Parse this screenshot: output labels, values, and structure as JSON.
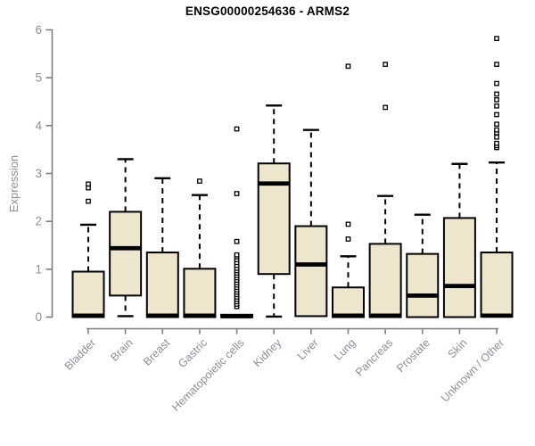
{
  "title": "ENSG00000254636 - ARMS2",
  "colors": {
    "box_fill": "#ede6cc",
    "box_stroke": "#000000",
    "axis_line": "#7e7e7e",
    "axis_text": "#8a8f98",
    "background": "#ffffff",
    "title_text": "#000000"
  },
  "chart_data": {
    "type": "boxplot",
    "title": "ENSG00000254636 - ARMS2",
    "xlabel": "",
    "ylabel": "Expression",
    "ylim": [
      0,
      6
    ],
    "y_ticks": [
      "0",
      "1",
      "2",
      "3",
      "4",
      "5",
      "6"
    ],
    "grid": false,
    "legend": "none",
    "categories": [
      "Bladder",
      "Brain",
      "Breast",
      "Gastric",
      "Hematopoietic cells",
      "Kidney",
      "Liver",
      "Lung",
      "Pancreas",
      "Prostate",
      "Skin",
      "Unknown / Other"
    ],
    "series": [
      {
        "name": "Bladder",
        "whislo": 0,
        "q1": 0,
        "med": 0.03,
        "q3": 0.95,
        "whishi": 1.93,
        "outliers": [
          2.42,
          2.7,
          2.78
        ]
      },
      {
        "name": "Brain",
        "whislo": 0.02,
        "q1": 0.45,
        "med": 1.44,
        "q3": 2.2,
        "whishi": 3.3,
        "outliers": []
      },
      {
        "name": "Breast",
        "whislo": 0,
        "q1": 0,
        "med": 0.03,
        "q3": 1.35,
        "whishi": 2.9,
        "outliers": []
      },
      {
        "name": "Gastric",
        "whislo": 0,
        "q1": 0,
        "med": 0.03,
        "q3": 1.01,
        "whishi": 2.55,
        "outliers": [
          2.84
        ]
      },
      {
        "name": "Hematopoietic cells",
        "whislo": 0,
        "q1": 0,
        "med": 0.02,
        "q3": 0.05,
        "whishi": 0.06,
        "outliers": [
          0.22,
          0.27,
          0.32,
          0.37,
          0.42,
          0.47,
          0.52,
          0.57,
          0.62,
          0.67,
          0.72,
          0.77,
          0.82,
          0.87,
          0.92,
          0.97,
          1.02,
          1.08,
          1.14,
          1.2,
          1.26,
          1.3,
          1.58,
          2.58,
          3.93
        ]
      },
      {
        "name": "Kidney",
        "whislo": 0.01,
        "q1": 0.9,
        "med": 2.79,
        "q3": 3.21,
        "whishi": 4.42,
        "outliers": []
      },
      {
        "name": "Liver",
        "whislo": 0.02,
        "q1": 0.02,
        "med": 1.1,
        "q3": 1.9,
        "whishi": 3.91,
        "outliers": []
      },
      {
        "name": "Lung",
        "whislo": 0,
        "q1": 0,
        "med": 0.03,
        "q3": 0.62,
        "whishi": 1.27,
        "outliers": [
          1.63,
          1.94,
          5.24
        ]
      },
      {
        "name": "Pancreas",
        "whislo": 0,
        "q1": 0,
        "med": 0.03,
        "q3": 1.53,
        "whishi": 2.53,
        "outliers": [
          4.38,
          5.28
        ]
      },
      {
        "name": "Prostate",
        "whislo": 0,
        "q1": 0,
        "med": 0.45,
        "q3": 1.32,
        "whishi": 2.14,
        "outliers": []
      },
      {
        "name": "Skin",
        "whislo": 0,
        "q1": 0,
        "med": 0.65,
        "q3": 2.07,
        "whishi": 3.2,
        "outliers": []
      },
      {
        "name": "Unknown / Other",
        "whislo": 0.01,
        "q1": 0.01,
        "med": 0.03,
        "q3": 1.35,
        "whishi": 3.23,
        "outliers": [
          3.54,
          3.58,
          3.63,
          3.76,
          3.85,
          3.91,
          4.03,
          4.23,
          4.41,
          4.54,
          4.66,
          4.88,
          5.28,
          5.82
        ]
      }
    ]
  }
}
